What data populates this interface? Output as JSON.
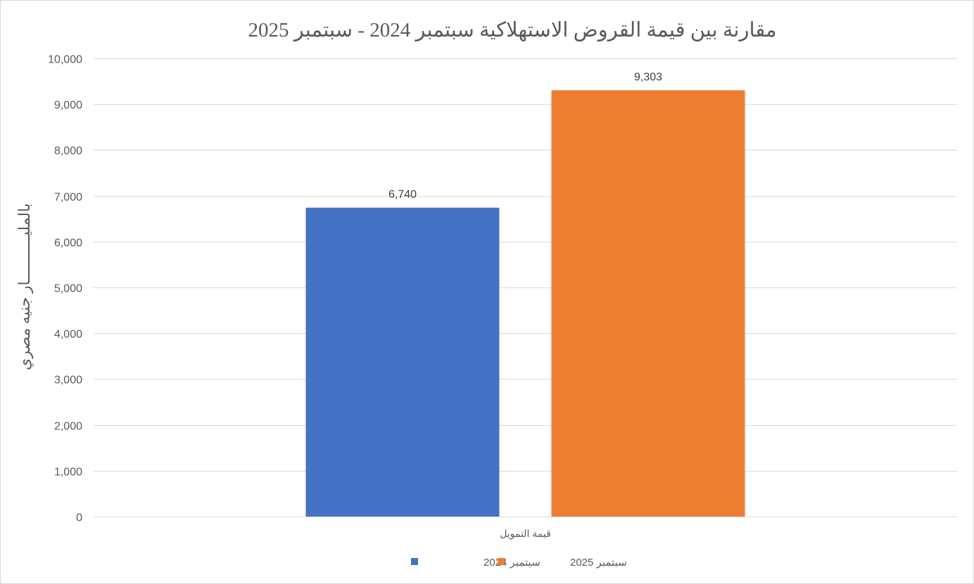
{
  "chart_data": {
    "type": "bar",
    "title": "مقارنة بين قيمة القروض الاستهلاكية سبتمبر 2024 - سبتمبر 2025",
    "xlabel": "",
    "ylabel": "بالمليــــــــــار جنيه مصري",
    "categories": [
      "قيمة التمويل"
    ],
    "series": [
      {
        "name": "سبتمبر 2024",
        "values": [
          6740
        ],
        "label": "6,740",
        "color": "#4472C4"
      },
      {
        "name": "سبتمبر 2025",
        "values": [
          9303
        ],
        "label": "9,303",
        "color": "#ED7D31"
      }
    ],
    "ylim": [
      0,
      10000
    ],
    "yticks": [
      0,
      1000,
      2000,
      3000,
      4000,
      5000,
      6000,
      7000,
      8000,
      9000,
      10000
    ],
    "ytick_labels": [
      "0",
      "1,000",
      "2,000",
      "3,000",
      "4,000",
      "5,000",
      "6,000",
      "7,000",
      "8,000",
      "9,000",
      "10,000"
    ],
    "grid": true,
    "legend_position": "bottom",
    "gridline_color": "#d9d9d9"
  }
}
